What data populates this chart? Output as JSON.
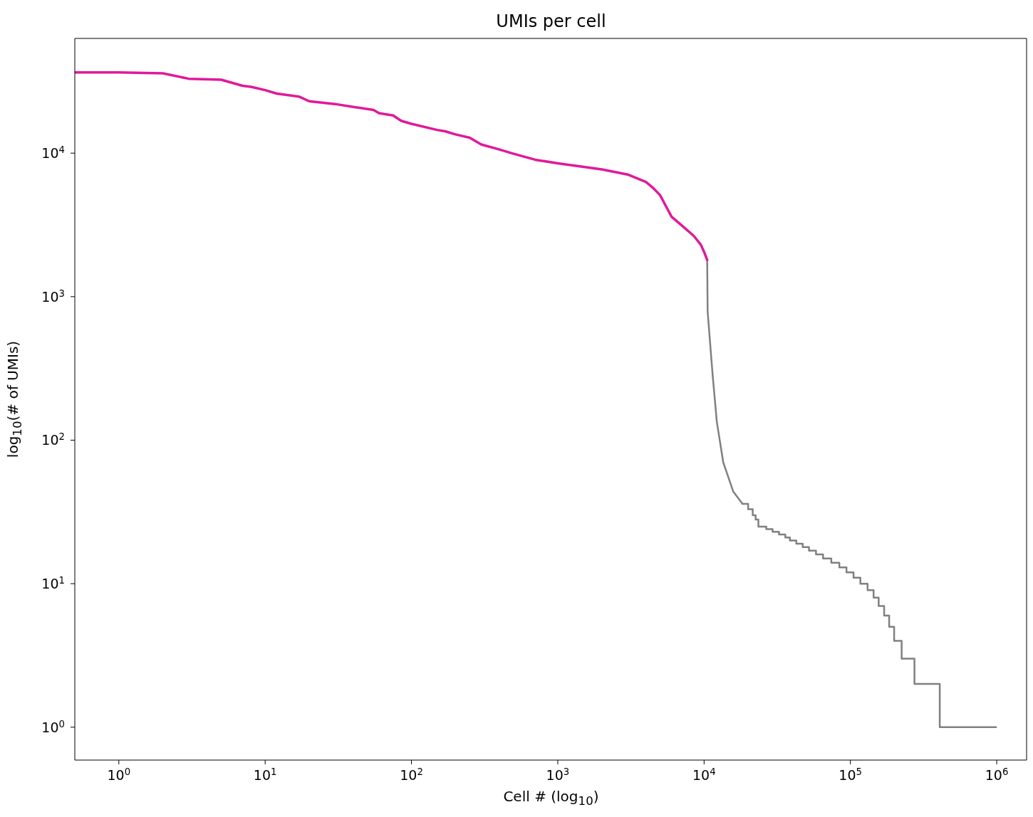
{
  "chart_data": {
    "type": "line",
    "title": "UMIs per cell",
    "xlabel": "Cell # (log$_{10}$)",
    "ylabel": "log$_{10}$(# of UMIs)",
    "log": "xy",
    "grid": false,
    "xlim": [
      0.5,
      1600000
    ],
    "ylim": [
      0.59,
      63000
    ],
    "xticks": [
      {
        "value": 1,
        "label": "10$^{0}$"
      },
      {
        "value": 10,
        "label": "10$^{1}$"
      },
      {
        "value": 100,
        "label": "10$^{2}$"
      },
      {
        "value": 1000,
        "label": "10$^{3}$"
      },
      {
        "value": 10000,
        "label": "10$^{4}$"
      },
      {
        "value": 100000,
        "label": "10$^{5}$"
      },
      {
        "value": 1000000,
        "label": "10$^{6}$"
      }
    ],
    "yticks": [
      {
        "value": 1,
        "label": "10$^{0}$"
      },
      {
        "value": 10,
        "label": "10$^{1}$"
      },
      {
        "value": 100,
        "label": "10$^{2}$"
      },
      {
        "value": 1000,
        "label": "10$^{3}$"
      },
      {
        "value": 10000,
        "label": "10$^{4}$"
      }
    ],
    "series": [
      {
        "color": "#808080",
        "x": [
          10500,
          10570,
          11430,
          12220,
          13520,
          15800,
          18300
        ],
        "values": [
          1800,
          790,
          287,
          134,
          70,
          44,
          36
        ]
      },
      {
        "type": "step",
        "color": "#808080",
        "x": [
          18300,
          20000,
          21500,
          22500,
          23500,
          26600,
          29400,
          32500,
          35900,
          38600,
          42700,
          47200,
          52100,
          58200,
          65000,
          74000,
          84000,
          94000,
          105000,
          117000,
          131000,
          144000,
          156000,
          170000,
          184000,
          199000,
          224000,
          274000,
          408000,
          990000
        ],
        "values": [
          36,
          33,
          30,
          28,
          25,
          24,
          23,
          22,
          21,
          20,
          19,
          18,
          17,
          16,
          15,
          14,
          13,
          12,
          11,
          10,
          9,
          8,
          7,
          6,
          5,
          4,
          3,
          2,
          1,
          1
        ]
      },
      {
        "color": "#e0199a",
        "x": [
          0.5,
          1,
          2,
          3,
          5,
          7,
          8,
          10,
          12,
          17,
          20,
          30,
          40,
          55,
          60,
          75,
          85,
          100,
          150,
          170,
          200,
          250,
          300,
          400,
          500,
          700,
          1000,
          2000,
          3000,
          4000,
          4500,
          5000,
          5600,
          6000,
          7000,
          8500,
          9500,
          10000,
          10500
        ],
        "values": [
          36500,
          36500,
          36000,
          33000,
          32500,
          29500,
          29000,
          27500,
          26000,
          24800,
          23000,
          22000,
          21000,
          20000,
          19000,
          18300,
          16800,
          16000,
          14500,
          14200,
          13500,
          12800,
          11500,
          10600,
          9900,
          9000,
          8500,
          7700,
          7100,
          6300,
          5700,
          5100,
          4100,
          3600,
          3150,
          2650,
          2300,
          2050,
          1800
        ]
      }
    ]
  }
}
